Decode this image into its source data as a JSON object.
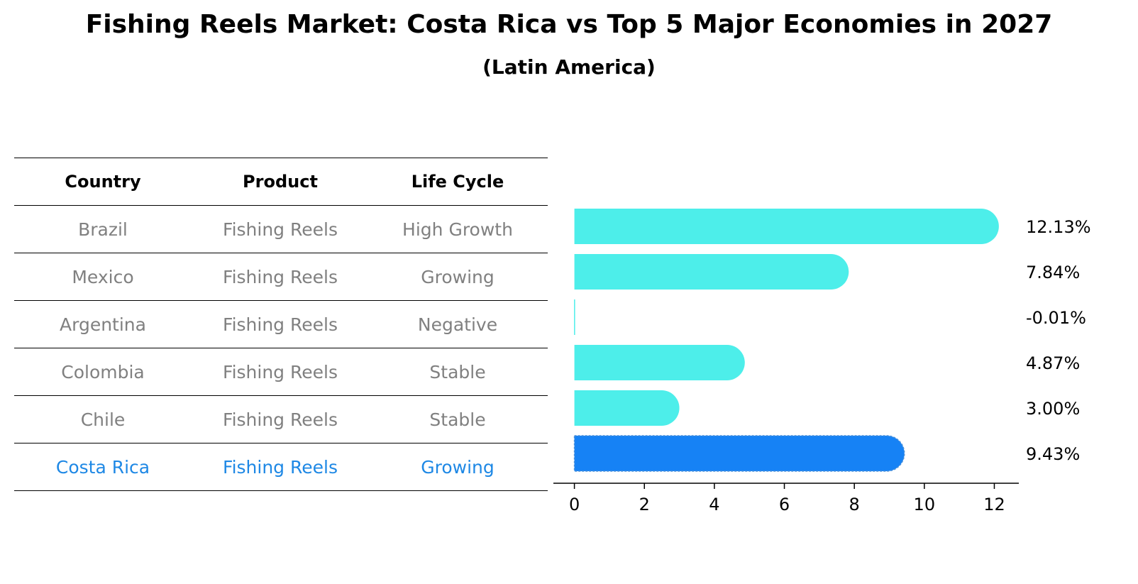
{
  "title": "Fishing Reels Market: Costa Rica vs Top 5 Major Economies in 2027",
  "subtitle": "(Latin America)",
  "table": {
    "headers": [
      "Country",
      "Product",
      "Life Cycle"
    ],
    "rows": [
      [
        "Brazil",
        "Fishing Reels",
        "High Growth"
      ],
      [
        "Mexico",
        "Fishing Reels",
        "Growing"
      ],
      [
        "Argentina",
        "Fishing Reels",
        "Negative"
      ],
      [
        "Colombia",
        "Fishing Reels",
        "Stable"
      ],
      [
        "Chile",
        "Fishing Reels",
        "Stable"
      ],
      [
        "Costa Rica",
        "Fishing Reels",
        "Growing"
      ]
    ]
  },
  "colors": {
    "bar": "#4deeea",
    "highlight_bar": "#1682f5",
    "highlight_text": "#1e88e5",
    "muted_text": "#808080"
  },
  "chart_data": {
    "type": "bar",
    "orientation": "horizontal",
    "categories": [
      "Brazil",
      "Mexico",
      "Argentina",
      "Colombia",
      "Chile",
      "Costa Rica"
    ],
    "values": [
      12.13,
      7.84,
      -0.01,
      4.87,
      3.0,
      9.43
    ],
    "value_labels": [
      "12.13%",
      "7.84%",
      "-0.01%",
      "4.87%",
      "3.00%",
      "9.43%"
    ],
    "highlight": "Costa Rica",
    "xticks": [
      0,
      2,
      4,
      6,
      8,
      10,
      12
    ],
    "xlim": [
      -0.6,
      12.7
    ],
    "title": "",
    "xlabel": "",
    "ylabel": ""
  }
}
